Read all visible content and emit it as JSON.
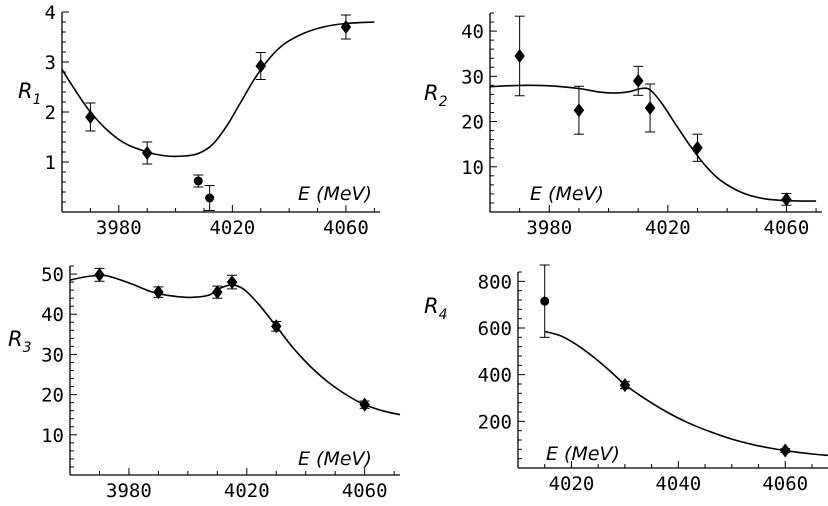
{
  "chart_data": [
    {
      "type": "scatter",
      "ylabel": "R",
      "ylabel_sub": "1",
      "xlabel": "E (MeV)",
      "xlim": [
        3960,
        4072
      ],
      "ylim": [
        0,
        4
      ],
      "x_ticks": [
        3980,
        4020,
        4060
      ],
      "y_ticks": [
        1,
        2,
        3,
        4
      ],
      "diamonds": [
        {
          "x": 3970,
          "y": 1.9,
          "err": 0.28
        },
        {
          "x": 3990,
          "y": 1.18,
          "err": 0.22
        },
        {
          "x": 4030,
          "y": 2.92,
          "err": 0.27
        },
        {
          "x": 4060,
          "y": 3.7,
          "err": 0.24
        }
      ],
      "circles": [
        {
          "x": 4008,
          "y": 0.62,
          "err": 0.12
        },
        {
          "x": 4012,
          "y": 0.28,
          "err": 0.25
        }
      ],
      "fit": [
        [
          3960,
          2.85
        ],
        [
          3970,
          2.0
        ],
        [
          3980,
          1.45
        ],
        [
          3990,
          1.2
        ],
        [
          3997,
          1.12
        ],
        [
          4003,
          1.12
        ],
        [
          4008,
          1.17
        ],
        [
          4013,
          1.35
        ],
        [
          4018,
          1.72
        ],
        [
          4023,
          2.2
        ],
        [
          4028,
          2.68
        ],
        [
          4033,
          3.07
        ],
        [
          4038,
          3.35
        ],
        [
          4045,
          3.57
        ],
        [
          4052,
          3.7
        ],
        [
          4060,
          3.77
        ],
        [
          4070,
          3.8
        ]
      ]
    },
    {
      "type": "scatter",
      "ylabel": "R",
      "ylabel_sub": "2",
      "xlabel": "E (MeV)",
      "xlim": [
        3960,
        4072
      ],
      "ylim": [
        0,
        44
      ],
      "x_ticks": [
        3980,
        4020,
        4060
      ],
      "y_ticks": [
        10,
        20,
        30,
        40
      ],
      "diamonds": [
        {
          "x": 3970,
          "y": 34.5,
          "err": 8.8
        },
        {
          "x": 3990,
          "y": 22.5,
          "err": 5.3
        },
        {
          "x": 4010,
          "y": 29.0,
          "err": 3.2
        },
        {
          "x": 4014,
          "y": 23.0,
          "err": 5.3
        },
        {
          "x": 4030,
          "y": 14.2,
          "err": 3.0
        },
        {
          "x": 4060,
          "y": 2.8,
          "err": 1.3
        }
      ],
      "circles": [],
      "fit": [
        [
          3960,
          27.7
        ],
        [
          3970,
          28.0
        ],
        [
          3980,
          27.9
        ],
        [
          3990,
          27.3
        ],
        [
          3997,
          26.5
        ],
        [
          4002,
          26.3
        ],
        [
          4007,
          26.6
        ],
        [
          4011,
          27.3
        ],
        [
          4014,
          27.0
        ],
        [
          4018,
          24.0
        ],
        [
          4023,
          19.0
        ],
        [
          4028,
          14.2
        ],
        [
          4033,
          10.0
        ],
        [
          4038,
          6.9
        ],
        [
          4045,
          4.3
        ],
        [
          4052,
          3.0
        ],
        [
          4060,
          2.5
        ],
        [
          4070,
          2.4
        ]
      ]
    },
    {
      "type": "scatter",
      "ylabel": "R",
      "ylabel_sub": "3",
      "xlabel": "E (MeV)",
      "xlim": [
        3960,
        4072
      ],
      "ylim": [
        0,
        52
      ],
      "x_ticks": [
        3980,
        4020,
        4060
      ],
      "y_ticks": [
        10,
        20,
        30,
        40,
        50
      ],
      "diamonds": [
        {
          "x": 3970,
          "y": 49.8,
          "err": 1.6
        },
        {
          "x": 3990,
          "y": 45.5,
          "err": 1.3
        },
        {
          "x": 4010,
          "y": 45.5,
          "err": 1.5
        },
        {
          "x": 4015,
          "y": 48.0,
          "err": 1.7
        },
        {
          "x": 4030,
          "y": 37.0,
          "err": 1.2
        },
        {
          "x": 4060,
          "y": 17.5,
          "err": 0.9
        }
      ],
      "circles": [],
      "fit": [
        [
          3960,
          48.5
        ],
        [
          3966,
          49.4
        ],
        [
          3972,
          49.6
        ],
        [
          3980,
          47.8
        ],
        [
          3988,
          45.5
        ],
        [
          3995,
          44.5
        ],
        [
          4001,
          44.2
        ],
        [
          4007,
          44.7
        ],
        [
          4011,
          46.5
        ],
        [
          4015,
          47.3
        ],
        [
          4019,
          46.2
        ],
        [
          4024,
          42.5
        ],
        [
          4030,
          37.0
        ],
        [
          4036,
          31.4
        ],
        [
          4043,
          26.0
        ],
        [
          4050,
          21.8
        ],
        [
          4058,
          18.2
        ],
        [
          4065,
          16.2
        ],
        [
          4072,
          15.0
        ]
      ]
    },
    {
      "type": "scatter",
      "ylabel": "R",
      "ylabel_sub": "4",
      "xlabel": "E (MeV)",
      "xlim": [
        4010,
        4068
      ],
      "ylim": [
        0,
        840
      ],
      "x_ticks": [
        4020,
        4040,
        4060
      ],
      "y_ticks": [
        200,
        400,
        600,
        800
      ],
      "diamonds": [
        {
          "x": 4030,
          "y": 355,
          "err": 15
        },
        {
          "x": 4060,
          "y": 75,
          "err": 8
        }
      ],
      "circles": [
        {
          "x": 4015,
          "y": 715,
          "err": 155
        }
      ],
      "fit": [
        [
          4015,
          585
        ],
        [
          4018,
          566
        ],
        [
          4021,
          528
        ],
        [
          4024,
          478
        ],
        [
          4027,
          420
        ],
        [
          4030,
          358
        ],
        [
          4034,
          293
        ],
        [
          4038,
          238
        ],
        [
          4042,
          192
        ],
        [
          4046,
          155
        ],
        [
          4050,
          124
        ],
        [
          4054,
          100
        ],
        [
          4058,
          82
        ],
        [
          4062,
          68
        ],
        [
          4066,
          58
        ],
        [
          4068,
          54
        ]
      ]
    }
  ]
}
